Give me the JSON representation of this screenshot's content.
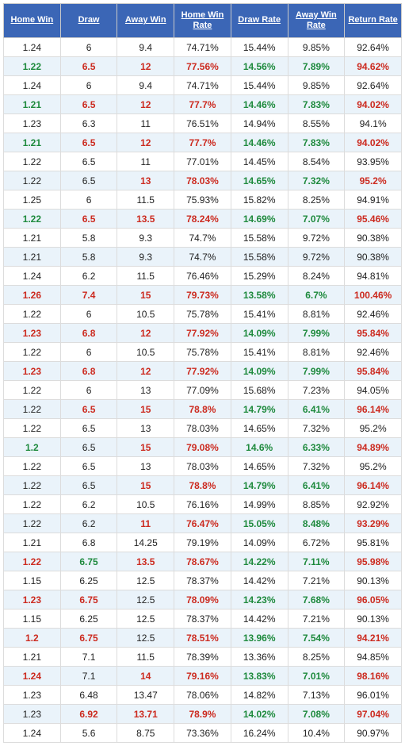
{
  "headers": [
    "Home Win",
    "Draw",
    "Away Win",
    "Home Win Rate",
    "Draw Rate",
    "Away Win Rate",
    "Return Rate"
  ],
  "colors": {
    "red": "#cc2a1f",
    "green": "#1e8a3d",
    "black": "#222222",
    "header_bg": "#3b66b6",
    "even_bg": "#eaf3fa"
  },
  "rows": [
    {
      "cells": [
        "1.24",
        "6",
        "9.4",
        "74.71%",
        "15.44%",
        "9.85%",
        "92.64%"
      ],
      "style": [
        "black",
        "black",
        "black",
        "black",
        "black",
        "black",
        "black"
      ]
    },
    {
      "cells": [
        "1.22",
        "6.5",
        "12",
        "77.56%",
        "14.56%",
        "7.89%",
        "94.62%"
      ],
      "style": [
        "green",
        "red",
        "red",
        "red",
        "green",
        "green",
        "red"
      ]
    },
    {
      "cells": [
        "1.24",
        "6",
        "9.4",
        "74.71%",
        "15.44%",
        "9.85%",
        "92.64%"
      ],
      "style": [
        "black",
        "black",
        "black",
        "black",
        "black",
        "black",
        "black"
      ]
    },
    {
      "cells": [
        "1.21",
        "6.5",
        "12",
        "77.7%",
        "14.46%",
        "7.83%",
        "94.02%"
      ],
      "style": [
        "green",
        "red",
        "red",
        "red",
        "green",
        "green",
        "red"
      ]
    },
    {
      "cells": [
        "1.23",
        "6.3",
        "11",
        "76.51%",
        "14.94%",
        "8.55%",
        "94.1%"
      ],
      "style": [
        "black",
        "black",
        "black",
        "black",
        "black",
        "black",
        "black"
      ]
    },
    {
      "cells": [
        "1.21",
        "6.5",
        "12",
        "77.7%",
        "14.46%",
        "7.83%",
        "94.02%"
      ],
      "style": [
        "green",
        "red",
        "red",
        "red",
        "green",
        "green",
        "red"
      ]
    },
    {
      "cells": [
        "1.22",
        "6.5",
        "11",
        "77.01%",
        "14.45%",
        "8.54%",
        "93.95%"
      ],
      "style": [
        "black",
        "black",
        "black",
        "black",
        "black",
        "black",
        "black"
      ]
    },
    {
      "cells": [
        "1.22",
        "6.5",
        "13",
        "78.03%",
        "14.65%",
        "7.32%",
        "95.2%"
      ],
      "style": [
        "black",
        "black",
        "red",
        "red",
        "green",
        "green",
        "red"
      ]
    },
    {
      "cells": [
        "1.25",
        "6",
        "11.5",
        "75.93%",
        "15.82%",
        "8.25%",
        "94.91%"
      ],
      "style": [
        "black",
        "black",
        "black",
        "black",
        "black",
        "black",
        "black"
      ]
    },
    {
      "cells": [
        "1.22",
        "6.5",
        "13.5",
        "78.24%",
        "14.69%",
        "7.07%",
        "95.46%"
      ],
      "style": [
        "green",
        "red",
        "red",
        "red",
        "green",
        "green",
        "red"
      ]
    },
    {
      "cells": [
        "1.21",
        "5.8",
        "9.3",
        "74.7%",
        "15.58%",
        "9.72%",
        "90.38%"
      ],
      "style": [
        "black",
        "black",
        "black",
        "black",
        "black",
        "black",
        "black"
      ]
    },
    {
      "cells": [
        "1.21",
        "5.8",
        "9.3",
        "74.7%",
        "15.58%",
        "9.72%",
        "90.38%"
      ],
      "style": [
        "black",
        "black",
        "black",
        "black",
        "black",
        "black",
        "black"
      ]
    },
    {
      "cells": [
        "1.24",
        "6.2",
        "11.5",
        "76.46%",
        "15.29%",
        "8.24%",
        "94.81%"
      ],
      "style": [
        "black",
        "black",
        "black",
        "black",
        "black",
        "black",
        "black"
      ]
    },
    {
      "cells": [
        "1.26",
        "7.4",
        "15",
        "79.73%",
        "13.58%",
        "6.7%",
        "100.46%"
      ],
      "style": [
        "red",
        "red",
        "red",
        "red",
        "green",
        "green",
        "red"
      ]
    },
    {
      "cells": [
        "1.22",
        "6",
        "10.5",
        "75.78%",
        "15.41%",
        "8.81%",
        "92.46%"
      ],
      "style": [
        "black",
        "black",
        "black",
        "black",
        "black",
        "black",
        "black"
      ]
    },
    {
      "cells": [
        "1.23",
        "6.8",
        "12",
        "77.92%",
        "14.09%",
        "7.99%",
        "95.84%"
      ],
      "style": [
        "red",
        "red",
        "red",
        "red",
        "green",
        "green",
        "red"
      ]
    },
    {
      "cells": [
        "1.22",
        "6",
        "10.5",
        "75.78%",
        "15.41%",
        "8.81%",
        "92.46%"
      ],
      "style": [
        "black",
        "black",
        "black",
        "black",
        "black",
        "black",
        "black"
      ]
    },
    {
      "cells": [
        "1.23",
        "6.8",
        "12",
        "77.92%",
        "14.09%",
        "7.99%",
        "95.84%"
      ],
      "style": [
        "red",
        "red",
        "red",
        "red",
        "green",
        "green",
        "red"
      ]
    },
    {
      "cells": [
        "1.22",
        "6",
        "13",
        "77.09%",
        "15.68%",
        "7.23%",
        "94.05%"
      ],
      "style": [
        "black",
        "black",
        "black",
        "black",
        "black",
        "black",
        "black"
      ]
    },
    {
      "cells": [
        "1.22",
        "6.5",
        "15",
        "78.8%",
        "14.79%",
        "6.41%",
        "96.14%"
      ],
      "style": [
        "black",
        "red",
        "red",
        "red",
        "green",
        "green",
        "red"
      ]
    },
    {
      "cells": [
        "1.22",
        "6.5",
        "13",
        "78.03%",
        "14.65%",
        "7.32%",
        "95.2%"
      ],
      "style": [
        "black",
        "black",
        "black",
        "black",
        "black",
        "black",
        "black"
      ]
    },
    {
      "cells": [
        "1.2",
        "6.5",
        "15",
        "79.08%",
        "14.6%",
        "6.33%",
        "94.89%"
      ],
      "style": [
        "green",
        "black",
        "red",
        "red",
        "green",
        "green",
        "red"
      ]
    },
    {
      "cells": [
        "1.22",
        "6.5",
        "13",
        "78.03%",
        "14.65%",
        "7.32%",
        "95.2%"
      ],
      "style": [
        "black",
        "black",
        "black",
        "black",
        "black",
        "black",
        "black"
      ]
    },
    {
      "cells": [
        "1.22",
        "6.5",
        "15",
        "78.8%",
        "14.79%",
        "6.41%",
        "96.14%"
      ],
      "style": [
        "black",
        "black",
        "red",
        "red",
        "green",
        "green",
        "red"
      ]
    },
    {
      "cells": [
        "1.22",
        "6.2",
        "10.5",
        "76.16%",
        "14.99%",
        "8.85%",
        "92.92%"
      ],
      "style": [
        "black",
        "black",
        "black",
        "black",
        "black",
        "black",
        "black"
      ]
    },
    {
      "cells": [
        "1.22",
        "6.2",
        "11",
        "76.47%",
        "15.05%",
        "8.48%",
        "93.29%"
      ],
      "style": [
        "black",
        "black",
        "red",
        "red",
        "green",
        "green",
        "red"
      ]
    },
    {
      "cells": [
        "1.21",
        "6.8",
        "14.25",
        "79.19%",
        "14.09%",
        "6.72%",
        "95.81%"
      ],
      "style": [
        "black",
        "black",
        "black",
        "black",
        "black",
        "black",
        "black"
      ]
    },
    {
      "cells": [
        "1.22",
        "6.75",
        "13.5",
        "78.67%",
        "14.22%",
        "7.11%",
        "95.98%"
      ],
      "style": [
        "red",
        "green",
        "red",
        "red",
        "green",
        "green",
        "red"
      ]
    },
    {
      "cells": [
        "1.15",
        "6.25",
        "12.5",
        "78.37%",
        "14.42%",
        "7.21%",
        "90.13%"
      ],
      "style": [
        "black",
        "black",
        "black",
        "black",
        "black",
        "black",
        "black"
      ]
    },
    {
      "cells": [
        "1.23",
        "6.75",
        "12.5",
        "78.09%",
        "14.23%",
        "7.68%",
        "96.05%"
      ],
      "style": [
        "red",
        "red",
        "black",
        "red",
        "green",
        "green",
        "red"
      ]
    },
    {
      "cells": [
        "1.15",
        "6.25",
        "12.5",
        "78.37%",
        "14.42%",
        "7.21%",
        "90.13%"
      ],
      "style": [
        "black",
        "black",
        "black",
        "black",
        "black",
        "black",
        "black"
      ]
    },
    {
      "cells": [
        "1.2",
        "6.75",
        "12.5",
        "78.51%",
        "13.96%",
        "7.54%",
        "94.21%"
      ],
      "style": [
        "red",
        "red",
        "black",
        "red",
        "green",
        "green",
        "red"
      ]
    },
    {
      "cells": [
        "1.21",
        "7.1",
        "11.5",
        "78.39%",
        "13.36%",
        "8.25%",
        "94.85%"
      ],
      "style": [
        "black",
        "black",
        "black",
        "black",
        "black",
        "black",
        "black"
      ]
    },
    {
      "cells": [
        "1.24",
        "7.1",
        "14",
        "79.16%",
        "13.83%",
        "7.01%",
        "98.16%"
      ],
      "style": [
        "red",
        "black",
        "red",
        "red",
        "green",
        "green",
        "red"
      ]
    },
    {
      "cells": [
        "1.23",
        "6.48",
        "13.47",
        "78.06%",
        "14.82%",
        "7.13%",
        "96.01%"
      ],
      "style": [
        "black",
        "black",
        "black",
        "black",
        "black",
        "black",
        "black"
      ]
    },
    {
      "cells": [
        "1.23",
        "6.92",
        "13.71",
        "78.9%",
        "14.02%",
        "7.08%",
        "97.04%"
      ],
      "style": [
        "black",
        "red",
        "red",
        "red",
        "green",
        "green",
        "red"
      ]
    },
    {
      "cells": [
        "1.24",
        "5.6",
        "8.75",
        "73.36%",
        "16.24%",
        "10.4%",
        "90.97%"
      ],
      "style": [
        "black",
        "black",
        "black",
        "black",
        "black",
        "black",
        "black"
      ]
    }
  ]
}
